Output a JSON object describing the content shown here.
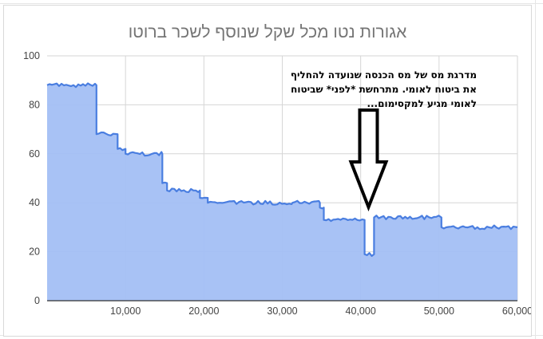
{
  "chart_data": {
    "type": "area",
    "title": "אגורות נטו מכל שקל שנוסף לשכר ברוטו",
    "xlabel": "",
    "ylabel": "",
    "xlim": [
      0,
      60000
    ],
    "ylim": [
      0,
      100
    ],
    "x_ticks": [
      10000,
      20000,
      30000,
      40000,
      50000,
      60000
    ],
    "x_tick_labels": [
      "10,000",
      "20,000",
      "30,000",
      "40,000",
      "50,000",
      "60,000"
    ],
    "y_ticks": [
      0,
      20,
      40,
      60,
      80,
      100
    ],
    "y_tick_labels": [
      "0",
      "20",
      "40",
      "60",
      "80",
      "100"
    ],
    "grid": true,
    "color": "#4a7ee0",
    "fill_color": "#a3bff4",
    "series": [
      {
        "steps": [
          {
            "x_start": 0,
            "x_end": 6300,
            "y": 88
          },
          {
            "x_start": 6300,
            "x_end": 9000,
            "y": 68
          },
          {
            "x_start": 9000,
            "x_end": 10000,
            "y": 62
          },
          {
            "x_start": 10000,
            "x_end": 14700,
            "y": 60
          },
          {
            "x_start": 14700,
            "x_end": 15300,
            "y": 48
          },
          {
            "x_start": 15300,
            "x_end": 19500,
            "y": 45
          },
          {
            "x_start": 19500,
            "x_end": 20500,
            "y": 42
          },
          {
            "x_start": 20500,
            "x_end": 31300,
            "y": 40
          },
          {
            "x_start": 31300,
            "x_end": 34800,
            "y": 40
          },
          {
            "x_start": 34800,
            "x_end": 35300,
            "y": 38
          },
          {
            "x_start": 35300,
            "x_end": 40500,
            "y": 33
          },
          {
            "x_start": 40500,
            "x_end": 41700,
            "y": 19
          },
          {
            "x_start": 41700,
            "x_end": 50300,
            "y": 34
          },
          {
            "x_start": 50300,
            "x_end": 60000,
            "y": 30
          }
        ]
      }
    ],
    "annotation": {
      "text": "מדרגת מס של מס הכנסה שנועדה להחליף\nאת ביטוח לאומי. מתרחשת *לפני* שביטוח\nלאומי מגיע למקסימום...",
      "arrow_x": 41000,
      "arrow_points_to_y": 20
    }
  }
}
